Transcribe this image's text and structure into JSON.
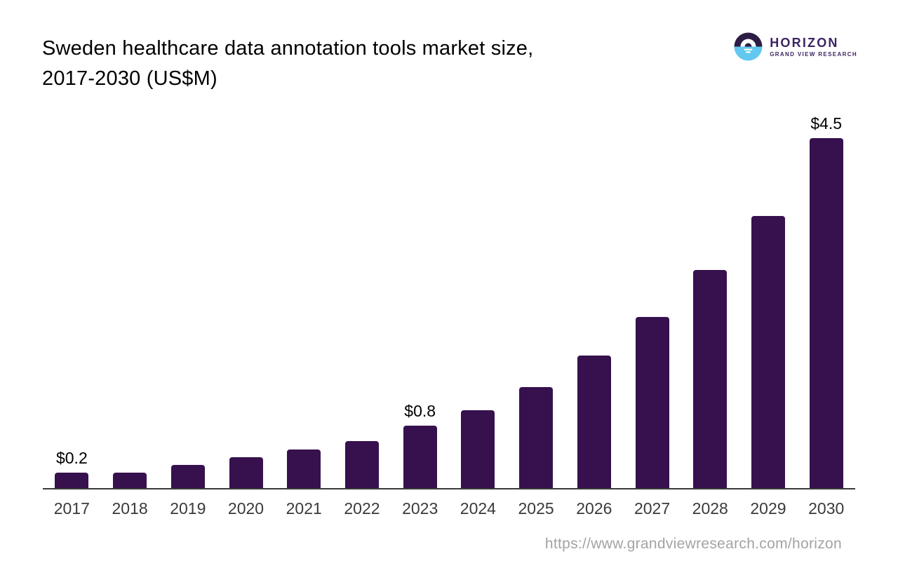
{
  "header": {
    "title_line1": "Sweden healthcare data annotation tools market size,",
    "title_line2": "2017-2030 (US$M)",
    "logo": {
      "brand": "HORIZON",
      "subtitle": "GRAND VIEW RESEARCH",
      "icon": "horizon-sunrise-icon",
      "colors": {
        "icon_top": "#2d1c45",
        "icon_bottom": "#62c8ef",
        "text": "#3d2462"
      }
    }
  },
  "footer": {
    "url": "https://www.grandviewresearch.com/horizon"
  },
  "chart_data": {
    "type": "bar",
    "title": "Sweden healthcare data annotation tools market size, 2017-2030 (US$M)",
    "xlabel": "",
    "ylabel": "",
    "units": "US$M",
    "categories": [
      "2017",
      "2018",
      "2019",
      "2020",
      "2021",
      "2022",
      "2023",
      "2024",
      "2025",
      "2026",
      "2027",
      "2028",
      "2029",
      "2030"
    ],
    "values": [
      0.2,
      0.2,
      0.3,
      0.4,
      0.5,
      0.6,
      0.8,
      1.0,
      1.3,
      1.7,
      2.2,
      2.8,
      3.5,
      4.5
    ],
    "bar_labels": [
      "$0.2",
      "",
      "",
      "",
      "",
      "",
      "$0.8",
      "",
      "",
      "",
      "",
      "",
      "",
      "$4.5"
    ],
    "ylim": [
      0,
      4.85
    ],
    "grid": false,
    "legend": false,
    "bar_color": "#36114e",
    "axis_color": "#3a3a3a",
    "tick_label_color": "#3a3a3a"
  }
}
